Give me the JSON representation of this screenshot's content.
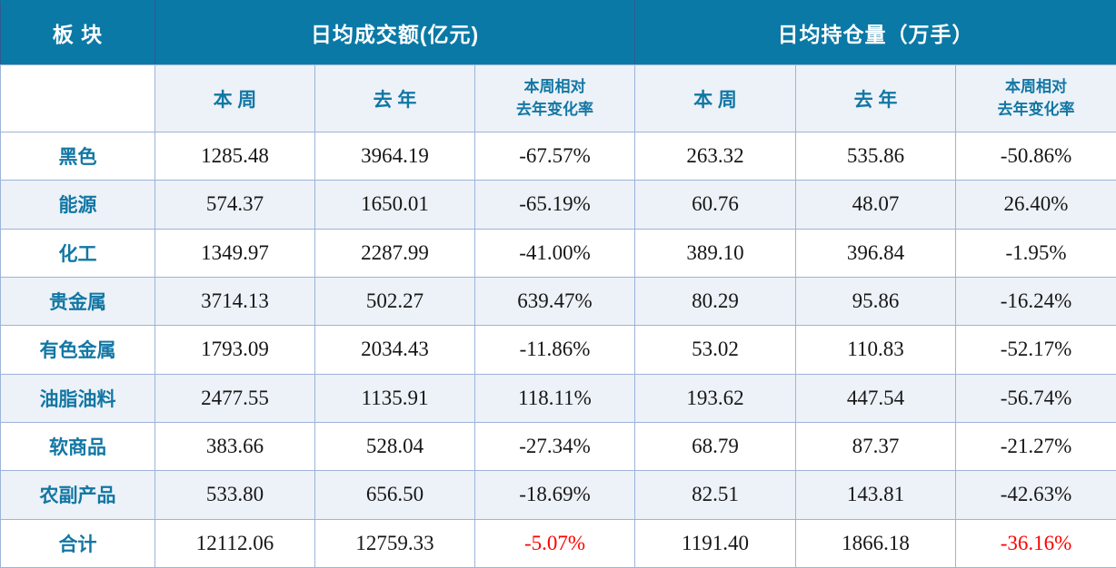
{
  "colors": {
    "header_bg": "#0b79a6",
    "header_text": "#ffffff",
    "accent_text": "#1277a4",
    "alt_row_bg": "#edf2f8",
    "border": "#9db3d9",
    "border_dark": "#2d5c90",
    "data_text": "#161616",
    "total_red": "#ff0000"
  },
  "chart_data": {
    "type": "table",
    "corner_header": "板 块",
    "groups": [
      {
        "title": "日均成交额(亿元)",
        "columns": [
          "本 周",
          "去 年",
          "本周相对\n去年变化率"
        ]
      },
      {
        "title": "日均持仓量（万手）",
        "columns": [
          "本 周",
          "去 年",
          "本周相对\n去年变化率"
        ]
      }
    ],
    "column_keys": [
      "turnover_this_week",
      "turnover_last_year",
      "turnover_change",
      "oi_this_week",
      "oi_last_year",
      "oi_change"
    ],
    "rows": [
      {
        "sector": "黑色",
        "values": [
          "1285.48",
          "3964.19",
          "-67.57%",
          "263.32",
          "535.86",
          "-50.86%"
        ],
        "is_total": false
      },
      {
        "sector": "能源",
        "values": [
          "574.37",
          "1650.01",
          "-65.19%",
          "60.76",
          "48.07",
          "26.40%"
        ],
        "is_total": false
      },
      {
        "sector": "化工",
        "values": [
          "1349.97",
          "2287.99",
          "-41.00%",
          "389.10",
          "396.84",
          "-1.95%"
        ],
        "is_total": false
      },
      {
        "sector": "贵金属",
        "values": [
          "3714.13",
          "502.27",
          "639.47%",
          "80.29",
          "95.86",
          "-16.24%"
        ],
        "is_total": false
      },
      {
        "sector": "有色金属",
        "values": [
          "1793.09",
          "2034.43",
          "-11.86%",
          "53.02",
          "110.83",
          "-52.17%"
        ],
        "is_total": false
      },
      {
        "sector": "油脂油料",
        "values": [
          "2477.55",
          "1135.91",
          "118.11%",
          "193.62",
          "447.54",
          "-56.74%"
        ],
        "is_total": false
      },
      {
        "sector": "软商品",
        "values": [
          "383.66",
          "528.04",
          "-27.34%",
          "68.79",
          "87.37",
          "-21.27%"
        ],
        "is_total": false
      },
      {
        "sector": "农副产品",
        "values": [
          "533.80",
          "656.50",
          "-18.69%",
          "82.51",
          "143.81",
          "-42.63%"
        ],
        "is_total": false
      },
      {
        "sector": "合计",
        "values": [
          "12112.06",
          "12759.33",
          "-5.07%",
          "1191.40",
          "1866.18",
          "-36.16%"
        ],
        "is_total": true
      }
    ]
  }
}
